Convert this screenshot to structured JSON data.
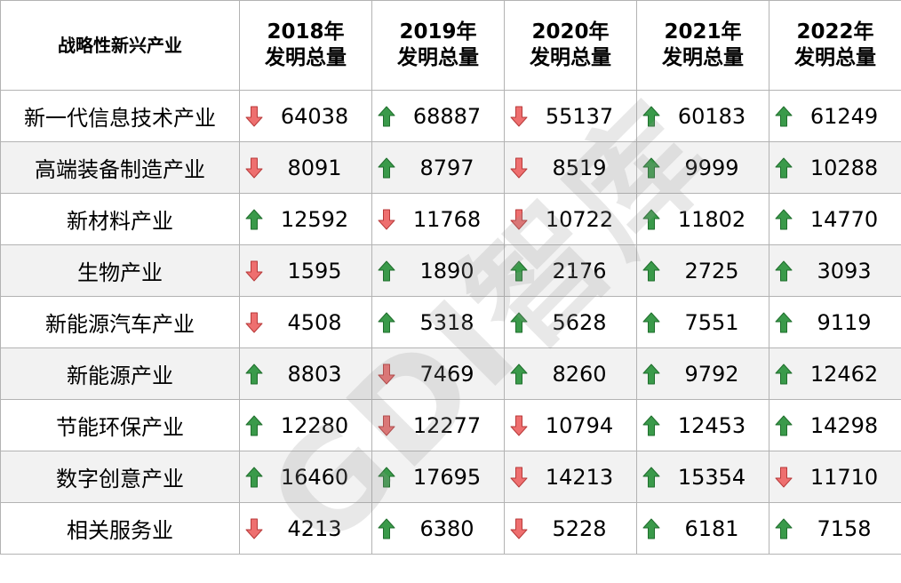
{
  "chart_data": {
    "type": "table",
    "corner_header": "战略性新兴产业",
    "columns": [
      {
        "year": "2018年",
        "label": "发明总量"
      },
      {
        "year": "2019年",
        "label": "发明总量"
      },
      {
        "year": "2020年",
        "label": "发明总量"
      },
      {
        "year": "2021年",
        "label": "发明总量"
      },
      {
        "year": "2022年",
        "label": "发明总量"
      }
    ],
    "rows": [
      {
        "industry": "新一代信息技术产业",
        "values": [
          64038,
          68887,
          55137,
          60183,
          61249
        ],
        "trend": [
          "down",
          "up",
          "down",
          "up",
          "up"
        ]
      },
      {
        "industry": "高端装备制造产业",
        "values": [
          8091,
          8797,
          8519,
          9999,
          10288
        ],
        "trend": [
          "down",
          "up",
          "down",
          "up",
          "up"
        ]
      },
      {
        "industry": "新材料产业",
        "values": [
          12592,
          11768,
          10722,
          11802,
          14770
        ],
        "trend": [
          "up",
          "down",
          "down",
          "up",
          "up"
        ]
      },
      {
        "industry": "生物产业",
        "values": [
          1595,
          1890,
          2176,
          2725,
          3093
        ],
        "trend": [
          "down",
          "up",
          "up",
          "up",
          "up"
        ]
      },
      {
        "industry": "新能源汽车产业",
        "values": [
          4508,
          5318,
          5628,
          7551,
          9119
        ],
        "trend": [
          "down",
          "up",
          "up",
          "up",
          "up"
        ]
      },
      {
        "industry": "新能源产业",
        "values": [
          8803,
          7469,
          8260,
          9792,
          12462
        ],
        "trend": [
          "up",
          "down",
          "up",
          "up",
          "up"
        ]
      },
      {
        "industry": "节能环保产业",
        "values": [
          12280,
          12277,
          10794,
          12453,
          14298
        ],
        "trend": [
          "up",
          "down",
          "down",
          "up",
          "up"
        ]
      },
      {
        "industry": "数字创意产业",
        "values": [
          16460,
          17695,
          14213,
          15354,
          11710
        ],
        "trend": [
          "up",
          "up",
          "down",
          "up",
          "down"
        ]
      },
      {
        "industry": "相关服务业",
        "values": [
          4213,
          6380,
          5228,
          6181,
          7158
        ],
        "trend": [
          "down",
          "up",
          "down",
          "up",
          "up"
        ]
      }
    ]
  },
  "watermark": "GDI智库",
  "colors": {
    "up_fill": "#3a9a4a",
    "up_stroke": "#1f6e2c",
    "down_fill": "#ee6f6f",
    "down_stroke": "#b83a3a"
  },
  "icons": {
    "up": "arrow-up-icon",
    "down": "arrow-down-icon"
  }
}
